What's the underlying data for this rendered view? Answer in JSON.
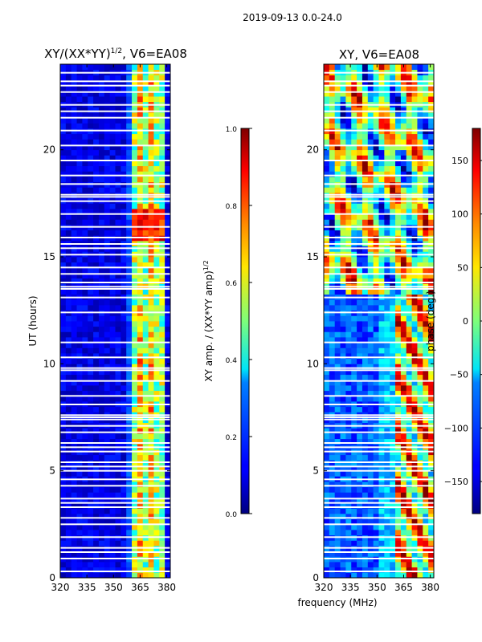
{
  "suptitle": "2019-09-13 0.0-24.0",
  "xlabel_shared": "frequency (MHz)",
  "chart_data": [
    {
      "type": "heatmap",
      "id": "amp",
      "title": "XY/(XX*YY)",
      "title_sup": "1/2",
      "title_suffix": ", V6=EA08",
      "xlim": [
        320,
        382
      ],
      "ylim": [
        0,
        24
      ],
      "xticks": [
        320,
        335,
        350,
        365,
        380
      ],
      "yticks": [
        0,
        5,
        10,
        15,
        20
      ],
      "ylabel": "UT (hours)",
      "colorbar": {
        "label": "XY amp. / (XX*YY amp)",
        "label_sup": "1/2",
        "vmin": 0,
        "vmax": 1,
        "ticks": [
          "0.0",
          "0.2",
          "0.4",
          "0.6",
          "0.8",
          "1.0"
        ]
      }
    },
    {
      "type": "heatmap",
      "id": "phase",
      "title": "XY, V6=EA08",
      "xlim": [
        320,
        382
      ],
      "ylim": [
        0,
        24
      ],
      "xticks": [
        320,
        335,
        350,
        365,
        380
      ],
      "yticks": [
        0,
        5,
        10,
        15,
        20
      ],
      "ylabel": "",
      "colorbar": {
        "label": "phase (deg.)",
        "vmin": -180,
        "vmax": 180,
        "ticks": [
          "−150",
          "−100",
          "−50",
          "0",
          "50",
          "100",
          "150"
        ]
      }
    }
  ],
  "flagged_hours": [
    0.3,
    0.9,
    1.2,
    1.4,
    1.9,
    2.5,
    2.8,
    3.3,
    3.5,
    3.7,
    4.3,
    4.6,
    5.0,
    5.2,
    5.4,
    5.9,
    6.1,
    6.3,
    6.8,
    7.1,
    7.4,
    7.5,
    7.6,
    8.1,
    8.5,
    9.2,
    9.7,
    9.8,
    10.3,
    11.0,
    12.4,
    13.1,
    13.5,
    13.6,
    13.8,
    14.2,
    14.5,
    15.1,
    15.4,
    15.6,
    15.9,
    16.4,
    17.0,
    17.6,
    17.8,
    17.9,
    18.4,
    18.8,
    19.5,
    20.2,
    20.9,
    21.5,
    21.8,
    22.1,
    22.7,
    23.0,
    23.2,
    23.6
  ]
}
